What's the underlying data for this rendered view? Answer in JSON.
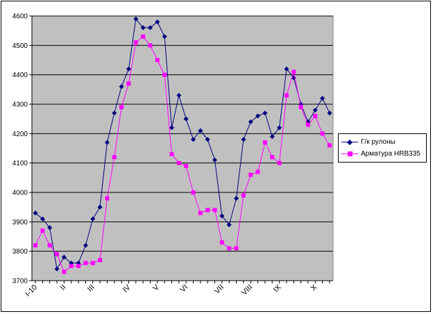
{
  "chart_data": {
    "type": "line",
    "title": "",
    "xlabel": "",
    "ylabel": "",
    "ylim": [
      3700,
      4600
    ],
    "yticks": [
      3700,
      3800,
      3900,
      4000,
      4100,
      4200,
      4300,
      4400,
      4500,
      4600
    ],
    "ytick_labels": [
      "3700",
      "3800",
      "3900",
      "4000",
      "4100",
      "4200",
      "4300",
      "4400",
      "4500",
      "4600"
    ],
    "n_points": 42,
    "x_tick_labels": [
      {
        "index": 0,
        "label": "I-10"
      },
      {
        "index": 4,
        "label": "II"
      },
      {
        "index": 8,
        "label": "III"
      },
      {
        "index": 13,
        "label": "IV"
      },
      {
        "index": 17,
        "label": "V"
      },
      {
        "index": 21,
        "label": "VI"
      },
      {
        "index": 26,
        "label": "VII"
      },
      {
        "index": 30,
        "label": "VIII"
      },
      {
        "index": 34,
        "label": "IX"
      },
      {
        "index": 39,
        "label": "X"
      }
    ],
    "grid": true,
    "plot_background": "#c0c0c0",
    "legend_position": "right",
    "series": [
      {
        "name": "Г/к рулоны",
        "color": "#000080",
        "marker": "diamond",
        "values": [
          3930,
          3910,
          3880,
          3740,
          3780,
          3760,
          3760,
          3820,
          3910,
          3950,
          4170,
          4270,
          4360,
          4420,
          4590,
          4560,
          4560,
          4580,
          4530,
          4220,
          4330,
          4250,
          4180,
          4210,
          4180,
          4110,
          3920,
          3890,
          3980,
          4180,
          4240,
          4260,
          4270,
          4190,
          4220,
          4420,
          4390,
          4300,
          4240,
          4280,
          4320,
          4270
        ]
      },
      {
        "name": "Арматура HRB335",
        "color": "#ff00ff",
        "marker": "square",
        "values": [
          3820,
          3870,
          3820,
          3790,
          3730,
          3750,
          3750,
          3760,
          3760,
          3770,
          3980,
          4120,
          4290,
          4370,
          4510,
          4530,
          4500,
          4450,
          4400,
          4130,
          4100,
          4090,
          4000,
          3930,
          3940,
          3940,
          3830,
          3810,
          3810,
          3990,
          4060,
          4070,
          4170,
          4120,
          4100,
          4330,
          4410,
          4290,
          4230,
          4260,
          4200,
          4160
        ]
      }
    ]
  }
}
